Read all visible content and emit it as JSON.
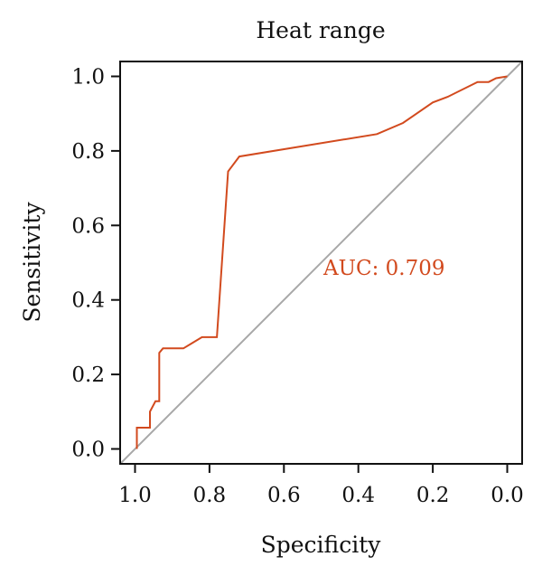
{
  "chart_data": {
    "type": "line",
    "title": "Heat range",
    "xlabel": "Specificity",
    "ylabel": "Sensitivity",
    "xlim": [
      1.04,
      -0.04
    ],
    "ylim": [
      -0.04,
      1.04
    ],
    "x_reversed": true,
    "x_ticks": [
      1.0,
      0.8,
      0.6,
      0.4,
      0.2,
      0.0
    ],
    "x_tick_labels": [
      "1.0",
      "0.8",
      "0.6",
      "0.4",
      "0.2",
      "0.0"
    ],
    "y_ticks": [
      0.0,
      0.2,
      0.4,
      0.6,
      0.8,
      1.0
    ],
    "y_tick_labels": [
      "0.0",
      "0.2",
      "0.4",
      "0.6",
      "0.8",
      "1.0"
    ],
    "grid": false,
    "annotation": "AUC: 0.709",
    "series": [
      {
        "role": "roc-curve",
        "color": "#d24a1e",
        "x": [
          0.995,
          0.995,
          0.96,
          0.96,
          0.945,
          0.935,
          0.935,
          0.925,
          0.87,
          0.82,
          0.78,
          0.75,
          0.72,
          0.35,
          0.28,
          0.2,
          0.16,
          0.08,
          0.05,
          0.03,
          0.0
        ],
        "y": [
          0.0,
          0.057,
          0.057,
          0.1,
          0.128,
          0.128,
          0.258,
          0.27,
          0.27,
          0.3,
          0.3,
          0.745,
          0.785,
          0.845,
          0.875,
          0.93,
          0.945,
          0.985,
          0.985,
          0.995,
          1.0
        ]
      },
      {
        "role": "reference-diagonal",
        "color": "#a8a8a8",
        "x": [
          1.04,
          -0.04
        ],
        "y": [
          -0.04,
          1.04
        ]
      }
    ]
  }
}
